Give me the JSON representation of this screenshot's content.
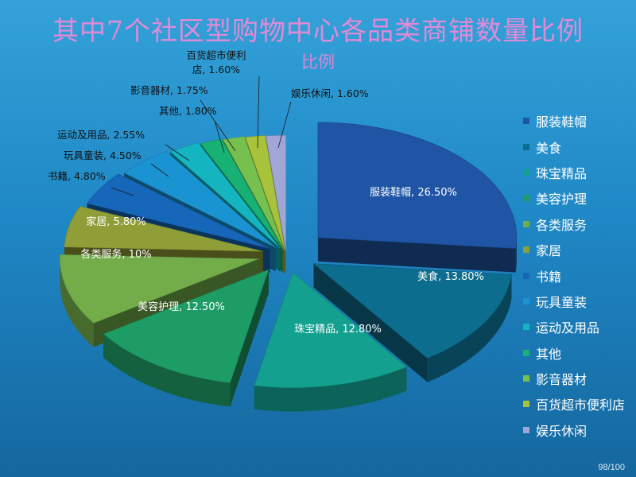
{
  "page": {
    "title": "其中7个社区型购物中心各品类商铺数量比例",
    "subtitle": "比例",
    "page_number": "98/100"
  },
  "chart_data": {
    "type": "pie",
    "title": "其中7个社区型购物中心各品类商铺数量比例",
    "subtitle": "比例",
    "unit": "%",
    "legend_position": "right",
    "categories": [
      "服装鞋帽",
      "美食",
      "珠宝精品",
      "美容护理",
      "各类服务",
      "家居",
      "书籍",
      "玩具童装",
      "运动及用品",
      "其他",
      "影音器材",
      "百货超市便利店",
      "娱乐休闲"
    ],
    "values": [
      26.5,
      13.8,
      12.8,
      12.5,
      10,
      5.8,
      4.8,
      4.5,
      2.55,
      1.8,
      1.75,
      1.6,
      1.6
    ],
    "data_labels": [
      "服装鞋帽, 26.50%",
      "美食, 13.80%",
      "珠宝精品, 12.80%",
      "美容护理, 12.50%",
      "各类服务, 10%",
      "家居, 5.80%",
      "书籍, 4.80%",
      "玩具童装, 4.50%",
      "运动及用品, 2.55%",
      "其他, 1.80%",
      "影音器材, 1.75%",
      "百货超市便利店, 1.60%",
      "娱乐休闲, 1.60%"
    ],
    "colors": [
      "#1f55a4",
      "#0d6d8e",
      "#14a08f",
      "#1e9c66",
      "#72ad4a",
      "#8f9e36",
      "#1667b9",
      "#1a93d3",
      "#14b4c0",
      "#17b273",
      "#76c04f",
      "#a9c23c",
      "#a0a6d6"
    ]
  }
}
